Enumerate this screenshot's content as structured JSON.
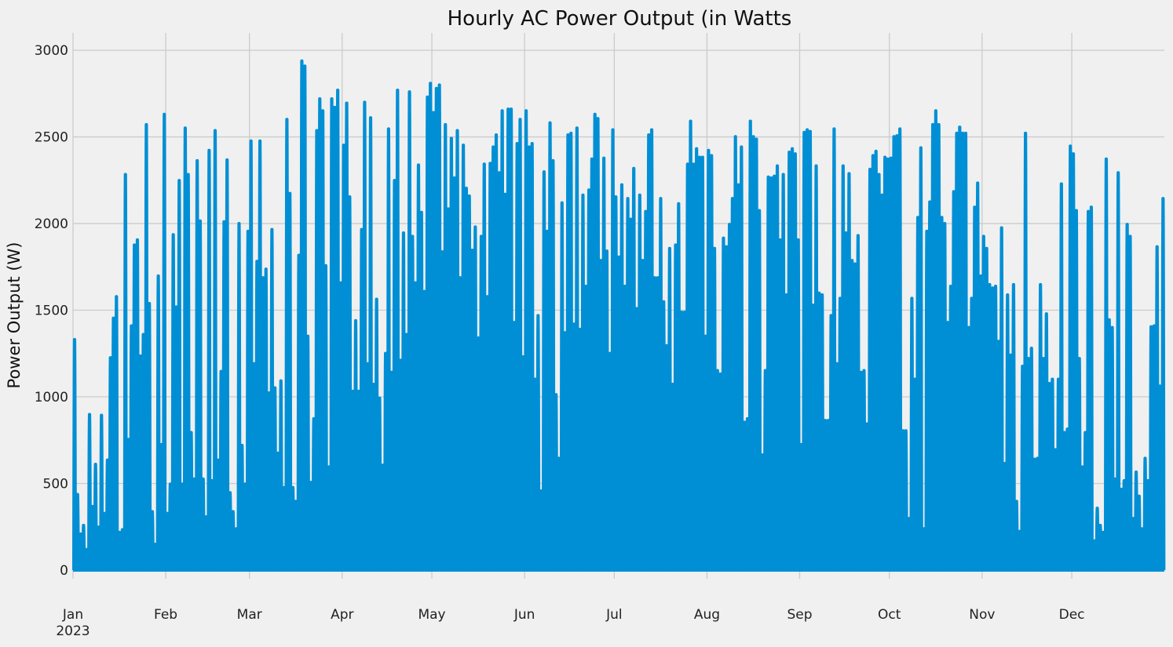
{
  "chart_data": {
    "type": "line",
    "title": "Hourly AC Power Output (in Watts",
    "xlabel": "",
    "ylabel": "Power Output (W)",
    "x_start": "2023-01-01T00:00",
    "x_end": "2023-12-31T23:00",
    "x_resolution": "hourly",
    "xticks": [
      "Jan",
      "Feb",
      "Mar",
      "Apr",
      "May",
      "Jun",
      "Jul",
      "Aug",
      "Sep",
      "Oct",
      "Nov",
      "Dec"
    ],
    "xticks_dates": [
      "2023-01-01",
      "2023-02-01",
      "2023-03-01",
      "2023-04-01",
      "2023-05-01",
      "2023-06-01",
      "2023-07-01",
      "2023-08-01",
      "2023-09-01",
      "2023-10-01",
      "2023-11-01",
      "2023-12-01"
    ],
    "xtick_year": "2023",
    "ylim": [
      -50,
      3100
    ],
    "yticks": [
      0,
      500,
      1000,
      1500,
      2000,
      2500,
      3000
    ],
    "grid": true,
    "line_color": "#008fd5",
    "series": [
      {
        "name": "",
        "description": "Hourly AC power; each day rises from 0 at night to a daily peak and falls back to 0",
        "daily_peaks": [
          1340,
          440,
          210,
          260,
          120,
          905,
          370,
          615,
          250,
          900,
          330,
          640,
          1235,
          1465,
          1590,
          220,
          235,
          2300,
          760,
          1420,
          1890,
          1920,
          1245,
          1370,
          2590,
          1550,
          340,
          150,
          1710,
          730,
          2650,
          330,
          500,
          1950,
          1530,
          2265,
          500,
          2570,
          2300,
          800,
          530,
          2380,
          2030,
          530,
          310,
          2440,
          520,
          2555,
          640,
          1155,
          2025,
          2385,
          450,
          340,
          240,
          2015,
          725,
          500,
          1970,
          2495,
          1200,
          1795,
          2495,
          1700,
          1750,
          1030,
          1980,
          1060,
          680,
          1100,
          480,
          2620,
          2190,
          480,
          400,
          1830,
          2960,
          2930,
          1360,
          510,
          880,
          2555,
          2740,
          2670,
          1770,
          600,
          2740,
          2690,
          2790,
          1670,
          2470,
          2715,
          2170,
          1040,
          1450,
          1040,
          1980,
          2720,
          1200,
          2630,
          1080,
          1575,
          1000,
          610,
          1260,
          2565,
          1150,
          2265,
          2790,
          1220,
          1960,
          1370,
          2780,
          1940,
          1670,
          2355,
          2080,
          1620,
          2750,
          2830,
          2660,
          2800,
          2820,
          1850,
          2590,
          2100,
          2510,
          2280,
          2555,
          1700,
          2470,
          2220,
          2175,
          1860,
          1995,
          1350,
          1940,
          2360,
          1590,
          2365,
          2460,
          2530,
          2310,
          2670,
          2185,
          2680,
          2680,
          1440,
          2480,
          2620,
          1240,
          2670,
          2460,
          2480,
          1110,
          1480,
          460,
          2315,
          1970,
          2600,
          2380,
          1020,
          650,
          2135,
          1380,
          2530,
          2540,
          1430,
          2570,
          1400,
          2180,
          1650,
          2210,
          2390,
          2650,
          2625,
          1800,
          2395,
          1855,
          1260,
          2560,
          2170,
          1820,
          2240,
          1650,
          2160,
          2040,
          2335,
          1520,
          2180,
          1800,
          2085,
          2530,
          2560,
          1700,
          1700,
          2160,
          1560,
          1305,
          1870,
          1080,
          1890,
          2130,
          1500,
          1500,
          2360,
          2610,
          2360,
          2450,
          2400,
          2400,
          1360,
          2440,
          2410,
          1870,
          1160,
          1140,
          1930,
          1880,
          2010,
          2160,
          2520,
          2240,
          2460,
          860,
          880,
          2610,
          2520,
          2505,
          2090,
          670,
          1160,
          2285,
          2280,
          2290,
          2350,
          1920,
          2300,
          1600,
          2430,
          2450,
          2420,
          1920,
          730,
          2545,
          2560,
          2550,
          1540,
          2350,
          1610,
          1600,
          870,
          870,
          1480,
          2565,
          1200,
          1580,
          2350,
          1960,
          2305,
          1800,
          1780,
          1945,
          1150,
          1160,
          850,
          2330,
          2410,
          2435,
          2300,
          2180,
          2400,
          2390,
          2395,
          2520,
          2525,
          2565,
          810,
          810,
          300,
          1580,
          1110,
          2050,
          2455,
          240,
          1970,
          2140,
          2590,
          2670,
          2590,
          2050,
          2015,
          1440,
          1650,
          2200,
          2540,
          2575,
          2540,
          2540,
          1410,
          1580,
          2110,
          2250,
          1710,
          1940,
          1870,
          1660,
          1640,
          1650,
          1330,
          1990,
          620,
          1600,
          1250,
          1660,
          400,
          225,
          1185,
          2540,
          1230,
          1290,
          645,
          650,
          1660,
          1230,
          1490,
          1085,
          1110,
          700,
          1110,
          2245,
          800,
          820,
          2465,
          2420,
          2090,
          1230,
          600,
          800,
          2085,
          2110,
          170,
          360,
          260,
          220,
          2390,
          1455,
          1410,
          530,
          2310,
          470,
          520,
          2010,
          1940,
          300,
          570,
          430,
          240,
          650,
          520,
          1415,
          1420,
          1880,
          1070,
          2160,
          2140,
          330
        ]
      }
    ]
  }
}
